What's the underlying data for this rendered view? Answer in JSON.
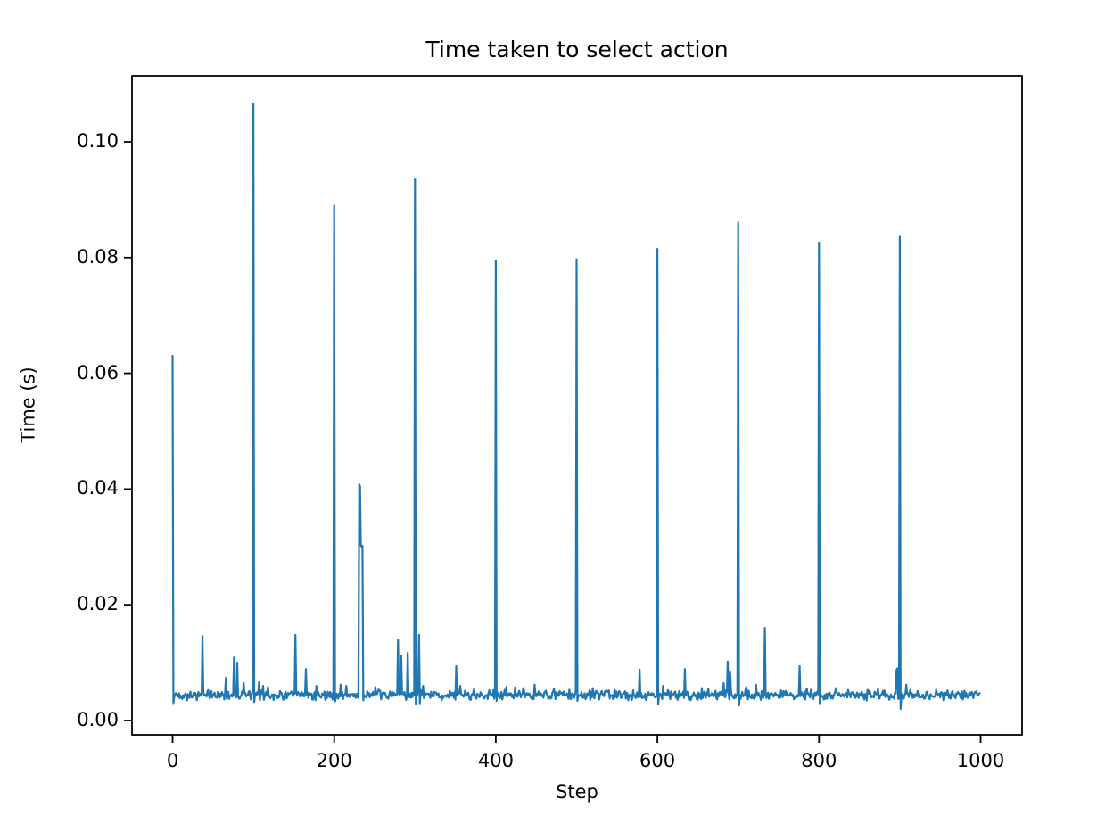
{
  "chart_data": {
    "type": "line",
    "title": "Time taken to select action",
    "xlabel": "Step",
    "ylabel": "Time (s)",
    "x_ticks": [
      0,
      200,
      400,
      600,
      800,
      1000
    ],
    "y_ticks": [
      0.0,
      0.02,
      0.04,
      0.06,
      0.08,
      0.1
    ],
    "y_tick_labels": [
      "0.00",
      "0.02",
      "0.04",
      "0.06",
      "0.08",
      "0.10"
    ],
    "xlim": [
      -50,
      1050
    ],
    "ylim": [
      -0.0027,
      0.1117
    ],
    "grid": false,
    "legend": null,
    "line_color": "#1f77b4",
    "n_points": 1000,
    "baseline": 0.0044,
    "noise_amplitude": 0.001,
    "spikes": [
      [
        0,
        0.063
      ],
      [
        37,
        0.0146
      ],
      [
        66,
        0.0074
      ],
      [
        76,
        0.0109
      ],
      [
        80,
        0.01
      ],
      [
        88,
        0.0065
      ],
      [
        100,
        0.1065
      ],
      [
        107,
        0.0066
      ],
      [
        112,
        0.006
      ],
      [
        118,
        0.0058
      ],
      [
        152,
        0.0148
      ],
      [
        165,
        0.0089
      ],
      [
        178,
        0.006
      ],
      [
        200,
        0.089
      ],
      [
        208,
        0.0062
      ],
      [
        215,
        0.006
      ],
      [
        231,
        0.0408
      ],
      [
        232,
        0.0405
      ],
      [
        233,
        0.0304
      ],
      [
        234,
        0.03
      ],
      [
        235,
        0.0302
      ],
      [
        251,
        0.0058
      ],
      [
        279,
        0.0139
      ],
      [
        283,
        0.0112
      ],
      [
        291,
        0.0117
      ],
      [
        300,
        0.0935
      ],
      [
        305,
        0.0148
      ],
      [
        310,
        0.006
      ],
      [
        351,
        0.0094
      ],
      [
        356,
        0.006
      ],
      [
        373,
        0.0055
      ],
      [
        400,
        0.0795
      ],
      [
        413,
        0.0058
      ],
      [
        424,
        0.0057
      ],
      [
        434,
        0.0056
      ],
      [
        448,
        0.0062
      ],
      [
        472,
        0.0055
      ],
      [
        500,
        0.0797
      ],
      [
        520,
        0.0056
      ],
      [
        540,
        0.0052
      ],
      [
        578,
        0.0088
      ],
      [
        600,
        0.0815
      ],
      [
        607,
        0.006
      ],
      [
        634,
        0.0089
      ],
      [
        655,
        0.0056
      ],
      [
        663,
        0.0055
      ],
      [
        682,
        0.0065
      ],
      [
        687,
        0.0102
      ],
      [
        690,
        0.0085
      ],
      [
        700,
        0.0861
      ],
      [
        710,
        0.0058
      ],
      [
        722,
        0.0062
      ],
      [
        733,
        0.016
      ],
      [
        776,
        0.0094
      ],
      [
        785,
        0.0055
      ],
      [
        800,
        0.0826
      ],
      [
        821,
        0.0056
      ],
      [
        836,
        0.0053
      ],
      [
        860,
        0.0053
      ],
      [
        873,
        0.0055
      ],
      [
        896,
        0.0088
      ],
      [
        897,
        0.009
      ],
      [
        900,
        0.0836
      ],
      [
        908,
        0.0062
      ],
      [
        959,
        0.0052
      ]
    ],
    "dips": [
      [
        1,
        0.003
      ],
      [
        101,
        0.0032
      ],
      [
        201,
        0.0033
      ],
      [
        236,
        0.0035
      ],
      [
        301,
        0.0028
      ],
      [
        306,
        0.003
      ],
      [
        401,
        0.0034
      ],
      [
        501,
        0.0034
      ],
      [
        601,
        0.0028
      ],
      [
        701,
        0.0026
      ],
      [
        801,
        0.003
      ],
      [
        901,
        0.002
      ]
    ]
  }
}
